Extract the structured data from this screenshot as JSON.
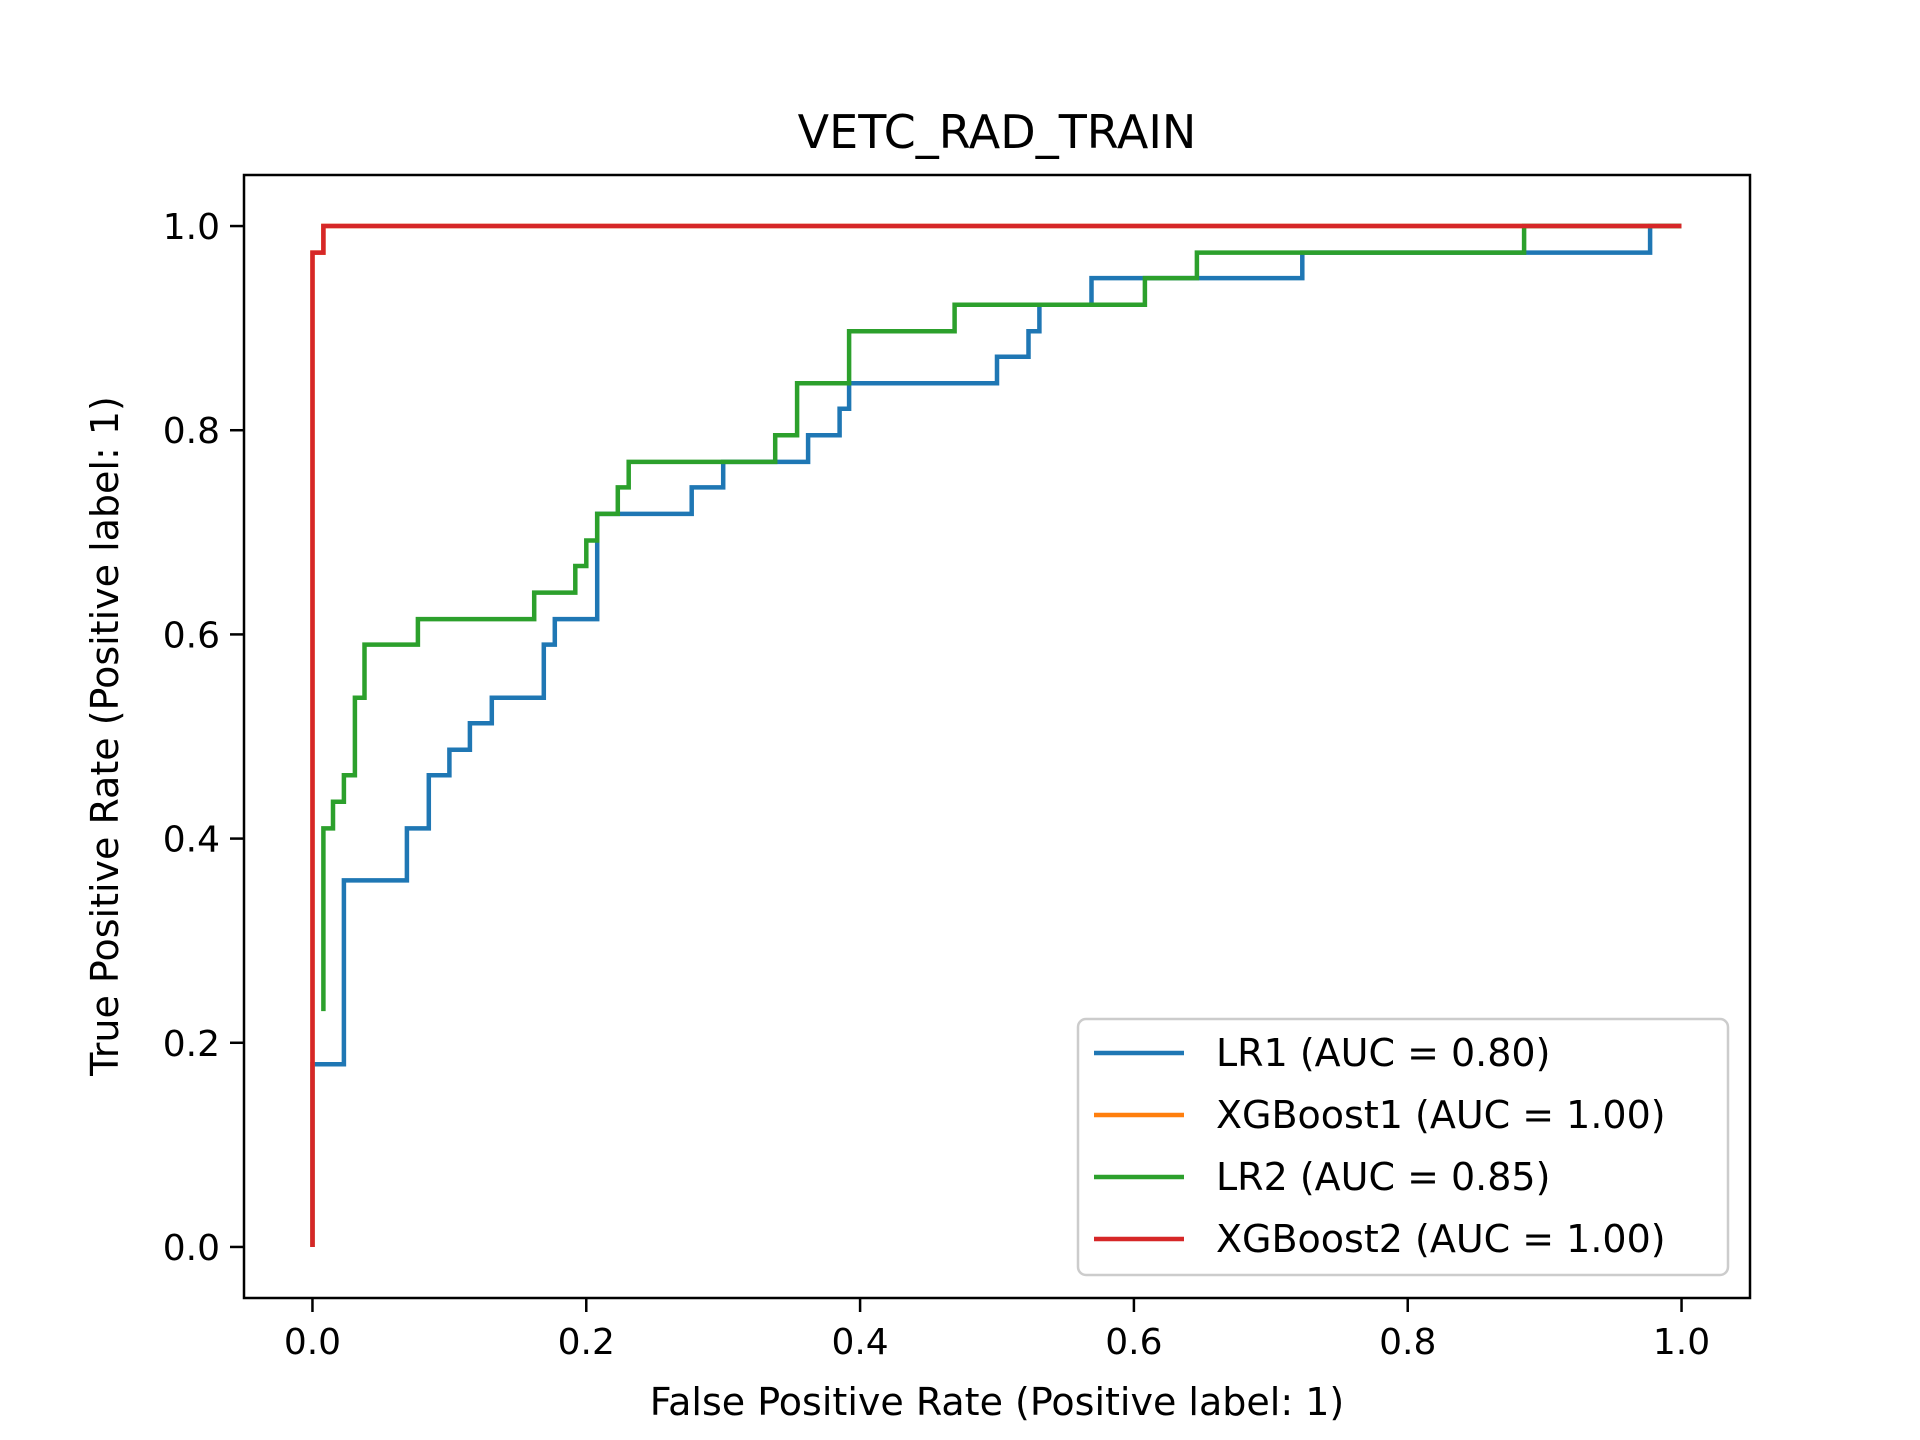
{
  "chart_data": {
    "type": "line",
    "title": "VETC_RAD_TRAIN",
    "xlabel": "False Positive Rate (Positive label: 1)",
    "ylabel": "True Positive Rate (Positive label: 1)",
    "xlim": [
      -0.05,
      1.05
    ],
    "ylim": [
      -0.05,
      1.05
    ],
    "xticks": [
      "0.0",
      "0.2",
      "0.4",
      "0.6",
      "0.8",
      "1.0"
    ],
    "yticks": [
      "0.0",
      "0.2",
      "0.4",
      "0.6",
      "0.8",
      "1.0"
    ],
    "grid": false,
    "legend_position": "lower-right",
    "series": [
      {
        "name": "LR1 (AUC = 0.80)",
        "color": "#1f77b4",
        "x": [
          0,
          0,
          0.023,
          0.023,
          0.069,
          0.069,
          0.085,
          0.085,
          0.1,
          0.1,
          0.115,
          0.115,
          0.131,
          0.131,
          0.169,
          0.169,
          0.177,
          0.177,
          0.208,
          0.208,
          0.277,
          0.277,
          0.3,
          0.3,
          0.362,
          0.362,
          0.385,
          0.385,
          0.392,
          0.392,
          0.5,
          0.5,
          0.523,
          0.523,
          0.531,
          0.531,
          0.569,
          0.569,
          0.723,
          0.723,
          0.977,
          0.977,
          1.0
        ],
        "y": [
          0,
          0.179,
          0.179,
          0.359,
          0.359,
          0.41,
          0.41,
          0.462,
          0.462,
          0.487,
          0.487,
          0.513,
          0.513,
          0.538,
          0.538,
          0.59,
          0.59,
          0.615,
          0.615,
          0.718,
          0.718,
          0.744,
          0.744,
          0.769,
          0.769,
          0.795,
          0.795,
          0.821,
          0.821,
          0.846,
          0.846,
          0.872,
          0.872,
          0.897,
          0.897,
          0.923,
          0.923,
          0.949,
          0.949,
          0.974,
          0.974,
          1.0,
          1.0
        ]
      },
      {
        "name": "XGBoost1 (AUC = 1.00)",
        "color": "#ff7f0e",
        "x": [
          0,
          0,
          0.008,
          0.008,
          1.0
        ],
        "y": [
          0,
          0.974,
          0.974,
          1.0,
          1.0
        ]
      },
      {
        "name": "LR2 (AUC = 0.85)",
        "color": "#2ca02c",
        "x": [
          0.008,
          0.008,
          0.015,
          0.015,
          0.023,
          0.023,
          0.031,
          0.031,
          0.038,
          0.038,
          0.077,
          0.077,
          0.162,
          0.162,
          0.192,
          0.192,
          0.2,
          0.2,
          0.208,
          0.208,
          0.223,
          0.223,
          0.231,
          0.231,
          0.338,
          0.338,
          0.354,
          0.354,
          0.392,
          0.392,
          0.469,
          0.469,
          0.608,
          0.608,
          0.646,
          0.646,
          0.885,
          0.885,
          1.0
        ],
        "y": [
          0.231,
          0.41,
          0.41,
          0.436,
          0.436,
          0.462,
          0.462,
          0.538,
          0.538,
          0.59,
          0.59,
          0.615,
          0.615,
          0.641,
          0.641,
          0.667,
          0.667,
          0.692,
          0.692,
          0.718,
          0.718,
          0.744,
          0.744,
          0.769,
          0.769,
          0.795,
          0.795,
          0.846,
          0.846,
          0.897,
          0.897,
          0.923,
          0.923,
          0.949,
          0.949,
          0.974,
          0.974,
          1.0,
          1.0
        ]
      },
      {
        "name": "XGBoost2 (AUC = 1.00)",
        "color": "#d62728",
        "x": [
          0,
          0,
          0.008,
          0.008,
          1.0
        ],
        "y": [
          0,
          0.974,
          0.974,
          1.0,
          1.0
        ]
      }
    ]
  }
}
